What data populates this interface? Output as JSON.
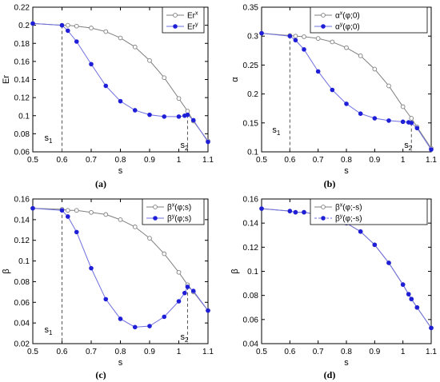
{
  "chart_data": [
    {
      "type": "line",
      "panel": "(a)",
      "xlabel": "s",
      "ylabel": "Er",
      "xlim": [
        0.5,
        1.1
      ],
      "ylim": [
        0.06,
        0.22
      ],
      "xticks": [
        0.5,
        0.6,
        0.7,
        0.8,
        0.9,
        1,
        1.1
      ],
      "yticks": [
        0.06,
        0.08,
        0.1,
        0.12,
        0.14,
        0.16,
        0.18,
        0.2,
        0.22
      ],
      "legend": {
        "position": "top-right",
        "entries": [
          "Er",
          "Er"
        ],
        "superscripts": [
          "x",
          "y"
        ]
      },
      "annotations": [
        {
          "text": "s",
          "sub": "1",
          "x": 0.6
        },
        {
          "text": "s",
          "sub": "2",
          "x": 1.03
        }
      ],
      "series": [
        {
          "style": "gray-open-circle",
          "x": [
            0.5,
            0.6,
            0.62,
            0.65,
            0.7,
            0.75,
            0.8,
            0.85,
            0.9,
            0.95,
            1.0,
            1.03,
            1.05,
            1.1
          ],
          "y": [
            0.202,
            0.2,
            0.2,
            0.199,
            0.197,
            0.193,
            0.186,
            0.176,
            0.161,
            0.142,
            0.119,
            0.105,
            0.094,
            0.072
          ]
        },
        {
          "style": "blue-filled-dot",
          "x": [
            0.5,
            0.6,
            0.62,
            0.65,
            0.7,
            0.75,
            0.8,
            0.85,
            0.9,
            0.95,
            1.0,
            1.02,
            1.03,
            1.05,
            1.1
          ],
          "y": [
            0.202,
            0.2,
            0.194,
            0.182,
            0.157,
            0.133,
            0.116,
            0.106,
            0.101,
            0.099,
            0.099,
            0.1,
            0.101,
            0.095,
            0.071
          ]
        }
      ]
    },
    {
      "type": "line",
      "panel": "(b)",
      "xlabel": "s",
      "ylabel": "α",
      "xlim": [
        0.5,
        1.1
      ],
      "ylim": [
        0.1,
        0.35
      ],
      "xticks": [
        0.5,
        0.6,
        0.7,
        0.8,
        0.9,
        1,
        1.1
      ],
      "yticks": [
        0.1,
        0.15,
        0.2,
        0.25,
        0.3,
        0.35
      ],
      "legend": {
        "position": "top-right",
        "entries": [
          "α(φ;0)",
          "α(φ;0)"
        ],
        "superscripts": [
          "x",
          "y"
        ]
      },
      "annotations": [
        {
          "text": "s",
          "sub": "1",
          "x": 0.6
        },
        {
          "text": "s",
          "sub": "2",
          "x": 1.03
        }
      ],
      "series": [
        {
          "style": "gray-open-circle",
          "x": [
            0.5,
            0.6,
            0.62,
            0.65,
            0.7,
            0.75,
            0.8,
            0.85,
            0.9,
            0.95,
            1.0,
            1.03,
            1.05,
            1.1
          ],
          "y": [
            0.305,
            0.301,
            0.3,
            0.299,
            0.296,
            0.29,
            0.28,
            0.266,
            0.243,
            0.214,
            0.178,
            0.158,
            0.143,
            0.106
          ]
        },
        {
          "style": "blue-filled-dot",
          "x": [
            0.5,
            0.6,
            0.62,
            0.65,
            0.7,
            0.75,
            0.8,
            0.85,
            0.9,
            0.95,
            1.0,
            1.02,
            1.03,
            1.05,
            1.1
          ],
          "y": [
            0.305,
            0.3,
            0.293,
            0.277,
            0.239,
            0.207,
            0.183,
            0.166,
            0.158,
            0.154,
            0.152,
            0.151,
            0.15,
            0.141,
            0.104
          ]
        }
      ]
    },
    {
      "type": "line",
      "panel": "(c)",
      "xlabel": "s",
      "ylabel": "β",
      "xlim": [
        0.5,
        1.1
      ],
      "ylim": [
        0.02,
        0.16
      ],
      "xticks": [
        0.5,
        0.6,
        0.7,
        0.8,
        0.9,
        1,
        1.1
      ],
      "yticks": [
        0.02,
        0.04,
        0.06,
        0.08,
        0.1,
        0.12,
        0.14,
        0.16
      ],
      "legend": {
        "position": "top-right",
        "entries": [
          "β(φ;s)",
          "β(φ;s)"
        ],
        "superscripts": [
          "x",
          "y"
        ]
      },
      "annotations": [
        {
          "text": "s",
          "sub": "1",
          "x": 0.6
        },
        {
          "text": "s",
          "sub": "2",
          "x": 1.03
        }
      ],
      "series": [
        {
          "style": "gray-open-circle",
          "x": [
            0.5,
            0.6,
            0.62,
            0.65,
            0.7,
            0.75,
            0.8,
            0.85,
            0.9,
            0.95,
            1.0,
            1.03,
            1.05,
            1.1
          ],
          "y": [
            0.151,
            0.15,
            0.149,
            0.149,
            0.147,
            0.145,
            0.14,
            0.133,
            0.122,
            0.107,
            0.089,
            0.077,
            0.07,
            0.052
          ]
        },
        {
          "style": "blue-filled-dot",
          "x": [
            0.5,
            0.6,
            0.62,
            0.65,
            0.7,
            0.75,
            0.8,
            0.85,
            0.9,
            0.95,
            1.0,
            1.02,
            1.03,
            1.05,
            1.1
          ],
          "y": [
            0.151,
            0.149,
            0.143,
            0.128,
            0.093,
            0.063,
            0.044,
            0.036,
            0.037,
            0.046,
            0.061,
            0.069,
            0.075,
            0.071,
            0.052
          ]
        }
      ]
    },
    {
      "type": "line",
      "panel": "(d)",
      "xlabel": "s",
      "ylabel": "β",
      "xlim": [
        0.5,
        1.1
      ],
      "ylim": [
        0.04,
        0.16
      ],
      "xticks": [
        0.5,
        0.6,
        0.7,
        0.8,
        0.9,
        1,
        1.1
      ],
      "yticks": [
        0.04,
        0.06,
        0.08,
        0.1,
        0.12,
        0.14,
        0.16
      ],
      "legend": {
        "position": "top-right",
        "entries": [
          "β(φ;-s)",
          "β(φ;-s)"
        ],
        "superscripts": [
          "x",
          "y"
        ]
      },
      "annotations": [],
      "series": [
        {
          "style": "gray-open-circle",
          "x": [
            0.5,
            0.6,
            0.62,
            0.65,
            0.7,
            0.75,
            0.8,
            0.85,
            0.9,
            0.95,
            1.0,
            1.02,
            1.03,
            1.05,
            1.1
          ],
          "y": [
            0.152,
            0.15,
            0.149,
            0.149,
            0.147,
            0.145,
            0.14,
            0.133,
            0.122,
            0.107,
            0.089,
            0.081,
            0.077,
            0.07,
            0.053
          ]
        },
        {
          "style": "blue-filled-dot",
          "x": [
            0.5,
            0.6,
            0.62,
            0.65,
            0.7,
            0.75,
            0.8,
            0.85,
            0.9,
            0.95,
            1.0,
            1.02,
            1.03,
            1.05,
            1.1
          ],
          "y": [
            0.152,
            0.15,
            0.149,
            0.149,
            0.147,
            0.145,
            0.14,
            0.133,
            0.122,
            0.107,
            0.089,
            0.081,
            0.077,
            0.07,
            0.053
          ]
        }
      ]
    }
  ],
  "colors": {
    "series_gray": "#7f7f7f",
    "series_blue": "#1f1fd8",
    "series_blue_line": "#6f6fe0",
    "annot_line": "#555555"
  }
}
